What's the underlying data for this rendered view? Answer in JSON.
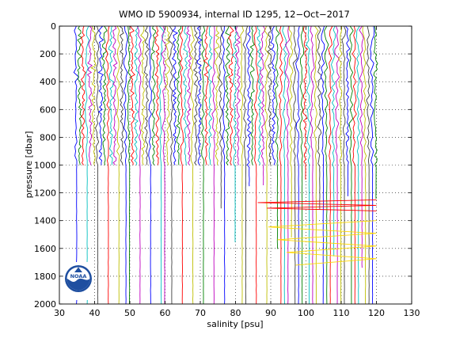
{
  "chart_data": {
    "type": "line",
    "title": "WMO ID 5900934, internal ID 1295, 12−Oct−2017",
    "xlabel": "salinity [psu]",
    "ylabel": "pressure [dbar]",
    "xlim": [
      30,
      130
    ],
    "ylim": [
      2000,
      0
    ],
    "y_reversed": true,
    "xticks": [
      30,
      40,
      50,
      60,
      70,
      80,
      90,
      100,
      110,
      120,
      130
    ],
    "yticks": [
      0,
      200,
      400,
      600,
      800,
      1000,
      1200,
      1400,
      1600,
      1800,
      2000
    ],
    "grid": true,
    "grid_style": "dotted",
    "legend": "none",
    "series_colors": [
      "#0000ff",
      "#008000",
      "#ff0000",
      "#00bfbf",
      "#bf00bf",
      "#bfbf00",
      "#404040"
    ],
    "profile_offset_step": 1.0,
    "profile_start_x": 34.8,
    "profile_count": 86,
    "profile_depth_shallow": 1000,
    "profile_depth_deep": 2000,
    "surface_salinity_range": [
      34.4,
      35.2
    ],
    "deep_salinity": 34.9,
    "loop_features": [
      {
        "color": "#ff0000",
        "pressure_range": [
          1250,
          1330
        ],
        "x_range": [
          85,
          120
        ]
      },
      {
        "color": "#ffd700",
        "pressure_range": [
          1400,
          1720
        ],
        "x_range": [
          88,
          120
        ]
      }
    ],
    "logo": {
      "name": "noaa-logo-icon",
      "text": "NOAA",
      "position": "bottom-left"
    }
  }
}
